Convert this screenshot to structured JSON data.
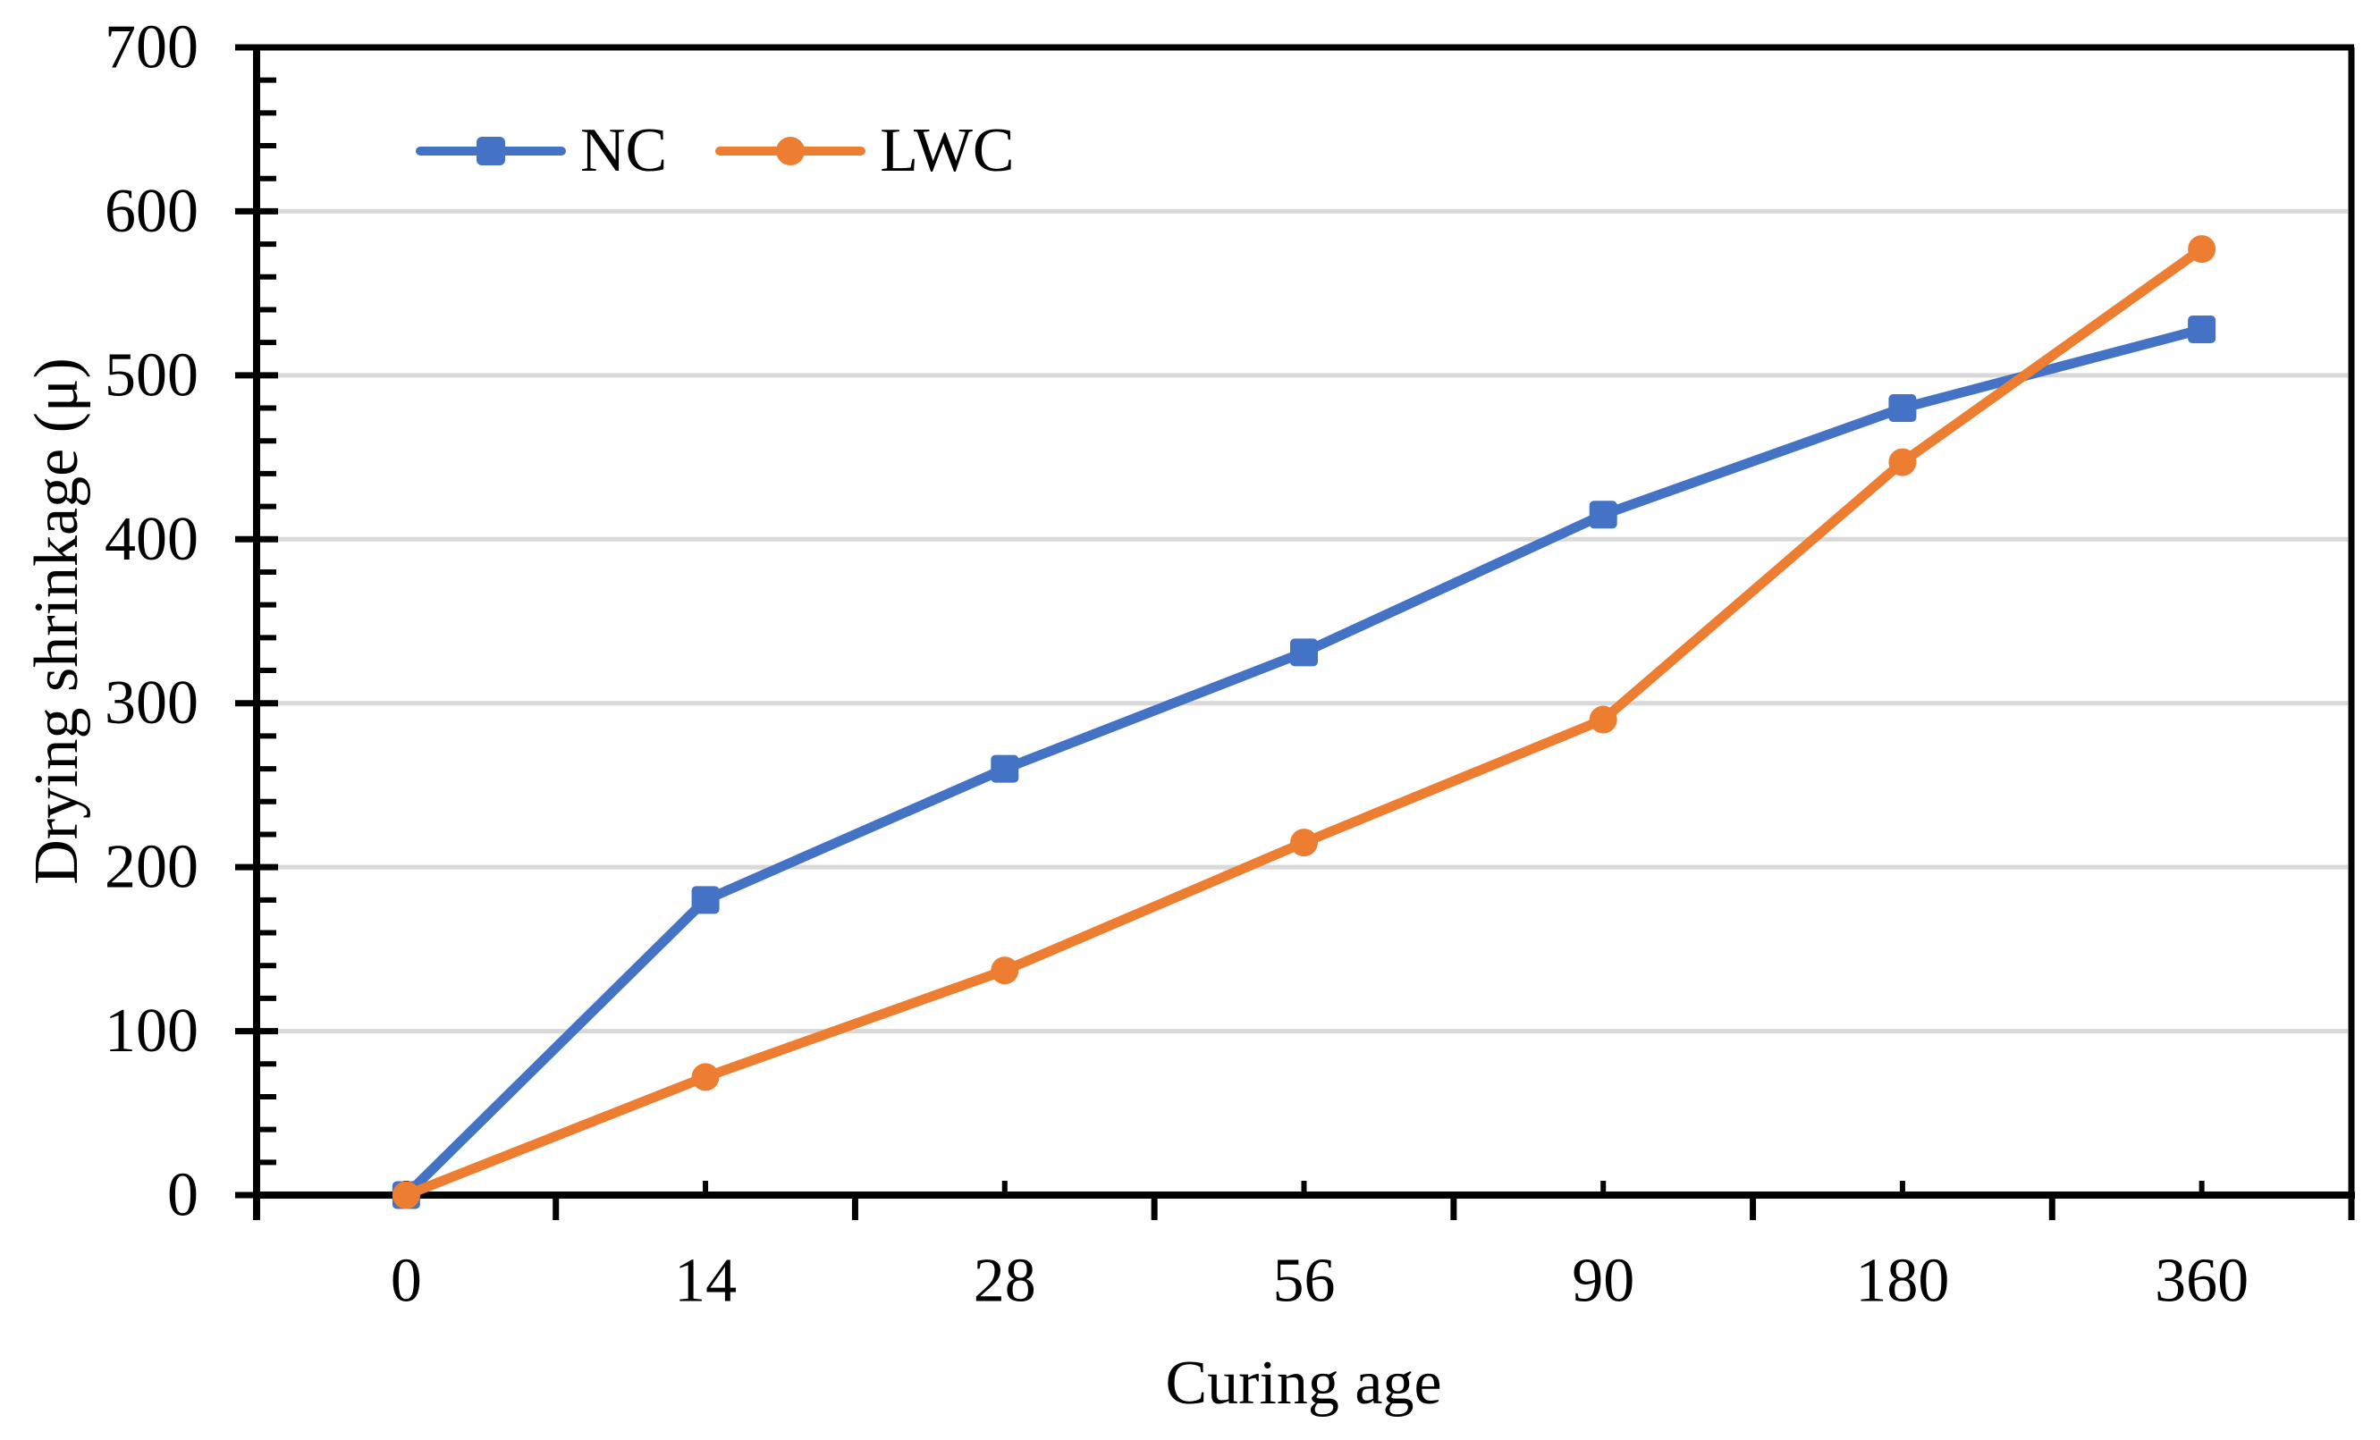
{
  "chart_data": {
    "type": "line",
    "title": "",
    "categories": [
      "0",
      "14",
      "28",
      "56",
      "90",
      "180",
      "360"
    ],
    "series": [
      {
        "name": "NC",
        "color": "#4472C4",
        "marker": "square",
        "values": [
          0,
          180,
          260,
          331,
          415,
          480,
          528
        ]
      },
      {
        "name": "LWC",
        "color": "#ED7D31",
        "marker": "circle",
        "values": [
          0,
          72,
          137,
          215,
          290,
          447,
          577
        ]
      }
    ],
    "xlabel": "Curing age",
    "ylabel": "Drying shrinkage (μ)",
    "ylim": [
      0,
      700
    ],
    "y_major_step": 100,
    "y_minor_step": 20,
    "y_tick_labels": [
      "0",
      "100",
      "200",
      "300",
      "400",
      "500",
      "600",
      "700"
    ],
    "grid": "horizontal-major",
    "gridline_color": "#D9D9D9",
    "axis_color": "#000000",
    "text_color": "#000000",
    "background_color": "#FFFFFF",
    "legend_position": "inside-top-left",
    "line_style": "solid-straight-segments"
  }
}
